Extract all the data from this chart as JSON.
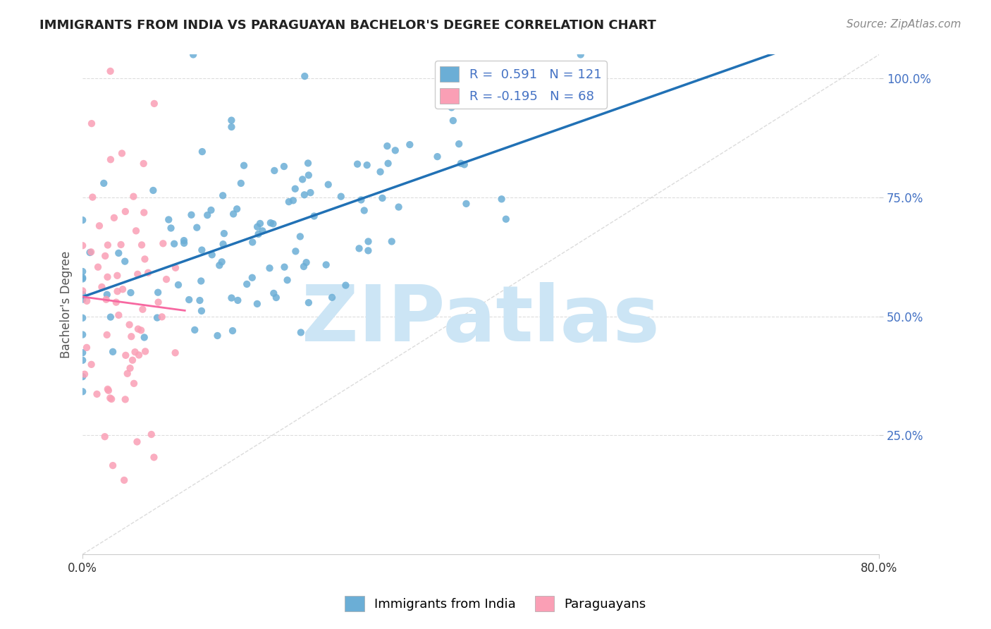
{
  "title": "IMMIGRANTS FROM INDIA VS PARAGUAYAN BACHELOR'S DEGREE CORRELATION CHART",
  "source": "Source: ZipAtlas.com",
  "ylabel": "Bachelor's Degree",
  "legend_label1": "Immigrants from India",
  "legend_label2": "Paraguayans",
  "R1": 0.591,
  "N1": 121,
  "R2": -0.195,
  "N2": 68,
  "blue_color": "#6baed6",
  "pink_color": "#fa9fb5",
  "blue_line_color": "#2171b5",
  "pink_line_color": "#f768a1",
  "watermark": "ZIPatlas",
  "watermark_color": "#cce5f5",
  "xlim": [
    0.0,
    0.8
  ],
  "ylim": [
    0.0,
    1.05
  ],
  "yticks": [
    0.25,
    0.5,
    0.75,
    1.0
  ],
  "ytick_labels": [
    "25.0%",
    "50.0%",
    "75.0%",
    "100.0%"
  ],
  "title_fontsize": 13,
  "source_fontsize": 11,
  "tick_fontsize": 12,
  "legend_fontsize": 13
}
